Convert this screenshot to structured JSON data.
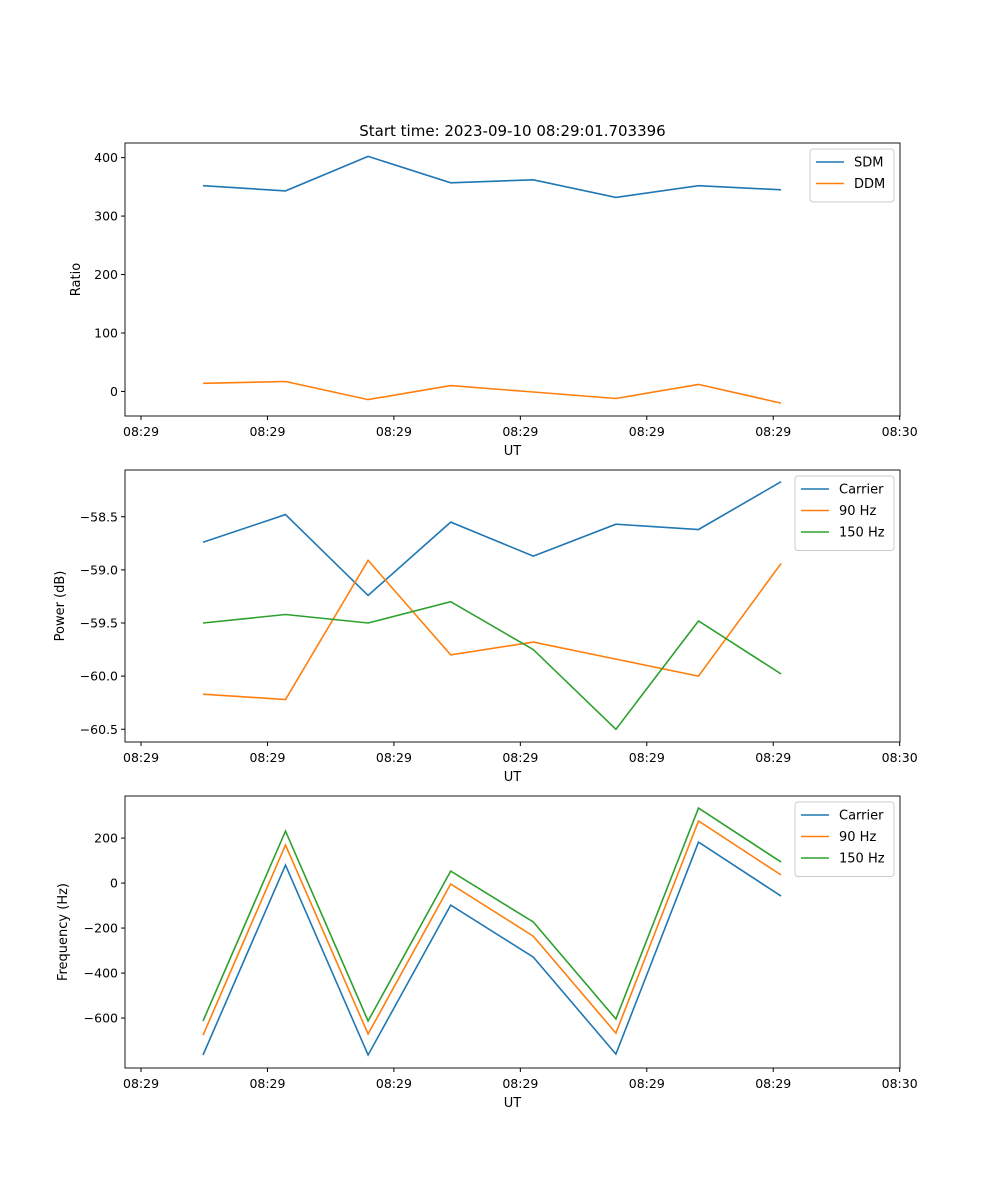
{
  "chart_data": [
    {
      "type": "line",
      "title": "Start time: 2023-09-10 08:29:01.703396",
      "xlabel": "UT",
      "ylabel": "Ratio",
      "x": [
        0,
        1,
        2,
        3,
        4,
        5,
        6,
        7
      ],
      "xlim": [
        -0.944,
        8.44
      ],
      "xticks": [
        -0.75,
        0.781,
        2.312,
        3.843,
        5.374,
        6.905,
        8.436
      ],
      "xtick_labels": [
        "08:29",
        "08:29",
        "08:29",
        "08:29",
        "08:29",
        "08:29",
        "08:30"
      ],
      "ylim": [
        -42,
        425
      ],
      "yticks": [
        0,
        100,
        200,
        300,
        400
      ],
      "ytick_labels": [
        "0",
        "100",
        "200",
        "300",
        "400"
      ],
      "legend": "top-right",
      "series": [
        {
          "name": "SDM",
          "color": "#1f77b4",
          "values": [
            352,
            343,
            402,
            357,
            362,
            332,
            352,
            345
          ]
        },
        {
          "name": "DDM",
          "color": "#ff7f0e",
          "values": [
            14,
            17,
            -14,
            10,
            -1,
            -12,
            12,
            -20
          ]
        }
      ]
    },
    {
      "type": "line",
      "xlabel": "UT",
      "ylabel": "Power (dB)",
      "x": [
        0,
        1,
        2,
        3,
        4,
        5,
        6,
        7
      ],
      "xlim": [
        -0.944,
        8.44
      ],
      "xticks": [
        -0.75,
        0.781,
        2.312,
        3.843,
        5.374,
        6.905,
        8.436
      ],
      "xtick_labels": [
        "08:29",
        "08:29",
        "08:29",
        "08:29",
        "08:29",
        "08:29",
        "08:30"
      ],
      "ylim": [
        -60.62,
        -58.06
      ],
      "yticks": [
        -58.5,
        -59.0,
        -59.5,
        -60.0,
        -60.5
      ],
      "ytick_labels": [
        "−58.5",
        "−59.0",
        "−59.5",
        "−60.0",
        "−60.5"
      ],
      "legend": "top-right",
      "series": [
        {
          "name": "Carrier",
          "color": "#1f77b4",
          "values": [
            -58.74,
            -58.48,
            -59.24,
            -58.55,
            -58.87,
            -58.57,
            -58.62,
            -58.17
          ]
        },
        {
          "name": "90 Hz",
          "color": "#ff7f0e",
          "values": [
            -60.17,
            -60.22,
            -58.91,
            -59.8,
            -59.68,
            -59.84,
            -60.0,
            -58.94
          ]
        },
        {
          "name": "150 Hz",
          "color": "#2ca02c",
          "values": [
            -59.5,
            -59.42,
            -59.5,
            -59.3,
            -59.75,
            -60.5,
            -59.48,
            -59.98
          ]
        }
      ]
    },
    {
      "type": "line",
      "xlabel": "UT",
      "ylabel": "Frequency (Hz)",
      "x": [
        0,
        1,
        2,
        3,
        4,
        5,
        6,
        7
      ],
      "xlim": [
        -0.944,
        8.44
      ],
      "xticks": [
        -0.75,
        0.781,
        2.312,
        3.843,
        5.374,
        6.905,
        8.436
      ],
      "xtick_labels": [
        "08:29",
        "08:29",
        "08:29",
        "08:29",
        "08:29",
        "08:29",
        "08:30"
      ],
      "ylim": [
        -822,
        387
      ],
      "yticks": [
        200,
        0,
        -200,
        -400,
        -600
      ],
      "ytick_labels": [
        "200",
        "0",
        "−200",
        "−400",
        "−600"
      ],
      "legend": "top-right",
      "series": [
        {
          "name": "Carrier",
          "color": "#1f77b4",
          "values": [
            -764,
            80,
            -764,
            -98,
            -329,
            -760,
            182,
            -58
          ]
        },
        {
          "name": "90 Hz",
          "color": "#ff7f0e",
          "values": [
            -676,
            169,
            -671,
            -4,
            -236,
            -667,
            276,
            36
          ]
        },
        {
          "name": "150 Hz",
          "color": "#2ca02c",
          "values": [
            -613,
            231,
            -613,
            53,
            -173,
            -604,
            333,
            93
          ]
        }
      ]
    }
  ]
}
